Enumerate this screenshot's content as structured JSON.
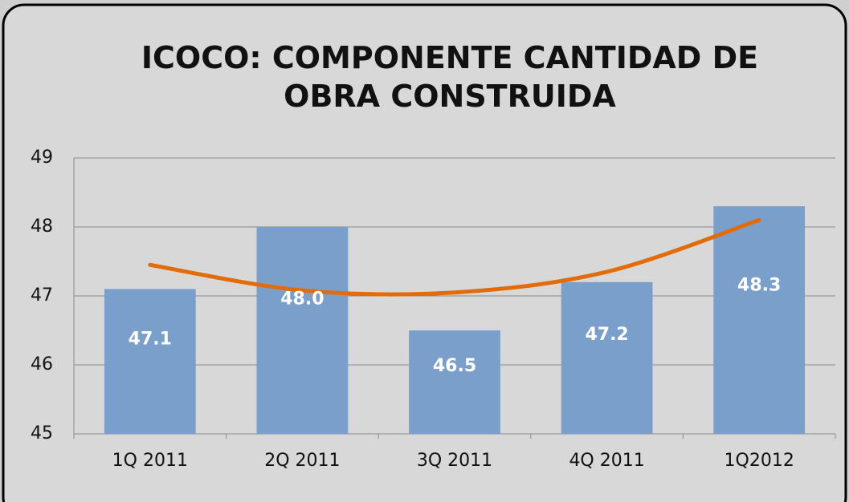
{
  "chart_data": {
    "type": "bar",
    "title": "ICOCO: COMPONENTE CANTIDAD DE OBRA CONSTRUIDA",
    "categories": [
      "1Q 2011",
      "2Q 2011",
      "3Q 2011",
      "4Q 2011",
      "1Q2012"
    ],
    "values": [
      47.1,
      48.0,
      46.5,
      47.2,
      48.3
    ],
    "value_labels": [
      "47.1",
      "48.0",
      "46.5",
      "47.2",
      "48.3"
    ],
    "color": "#7b9fcb",
    "trendline": {
      "color": "#e36c0a",
      "values": [
        47.45,
        47.08,
        47.05,
        47.35,
        48.1
      ]
    },
    "ylim": [
      45,
      49
    ],
    "yticks": [
      45,
      46,
      47,
      48,
      49
    ],
    "grid": true
  }
}
